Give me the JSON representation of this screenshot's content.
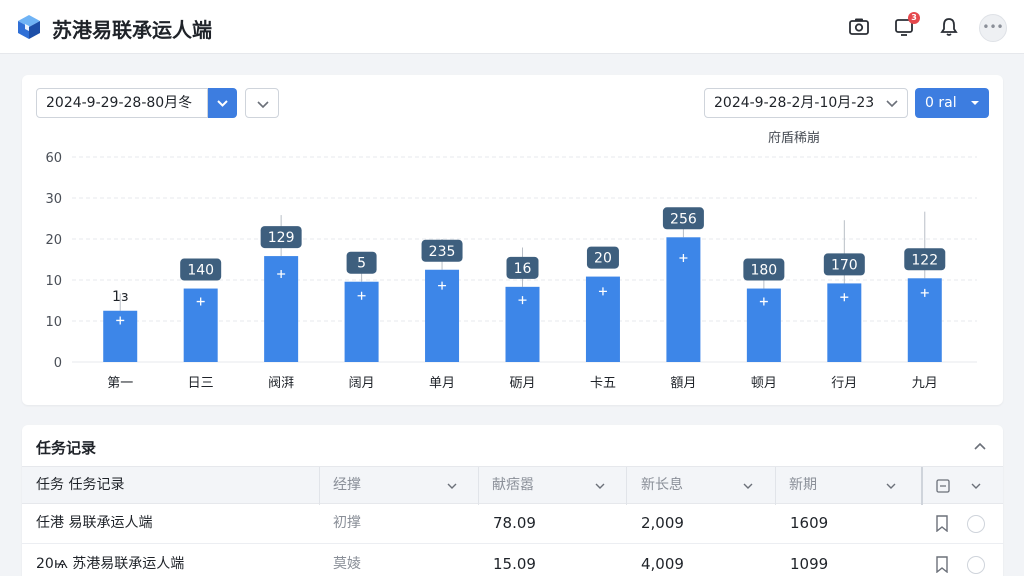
{
  "header": {
    "title": "苏港易联承运人端",
    "icons": [
      "cube-logo-icon",
      "camera-icon",
      "notification-icon",
      "bell-icon",
      "avatar"
    ],
    "notification_count": "3",
    "avatar_text": "•••"
  },
  "filters": {
    "left_date": "2024-9-29-28-80月冬",
    "right_date": "2024-9-28-2月-10月-23",
    "filter_label": "0 ral"
  },
  "chart_data": {
    "type": "bar",
    "title": "",
    "legend_label": "府盾稀崩",
    "categories": [
      "第一",
      "日三",
      "阀湃",
      "阔月",
      "单月",
      "砺月",
      "卡五",
      "額月",
      "顿月",
      "行月",
      "九月"
    ],
    "values": [
      15,
      21.5,
      31,
      23.5,
      27,
      22,
      25,
      36.5,
      21.5,
      23,
      24.5
    ],
    "whisker_top": [
      20,
      null,
      43,
      26.5,
      36,
      33.5,
      null,
      42.5,
      29.5,
      41.5,
      44
    ],
    "labels": [
      "1з",
      "140",
      "129",
      "5",
      "235",
      "16",
      "20",
      "256",
      "180",
      "170",
      "122"
    ],
    "yticks": [
      "60",
      "30",
      "20",
      "10",
      "10",
      "0"
    ],
    "ylim": [
      0,
      60
    ],
    "grid": true,
    "colors": {
      "bar": "#3d86e8",
      "label_bg": "#3e5f7e",
      "grid": "#e7eaee"
    }
  },
  "table": {
    "title": "任务记录",
    "columns": [
      "任务  任务记录",
      "经撑",
      "献痞嚣",
      "新长息",
      "新期"
    ],
    "rows": [
      {
        "name": "任港  易联承运人端",
        "type": "初撑",
        "v1": "78.09",
        "v2": "2,009",
        "v3": "1609"
      },
      {
        "name": "20ѩ  苏港易联承运人端",
        "type": "莫婈",
        "v1": "15.09",
        "v2": "4,009",
        "v3": "1099"
      }
    ]
  }
}
